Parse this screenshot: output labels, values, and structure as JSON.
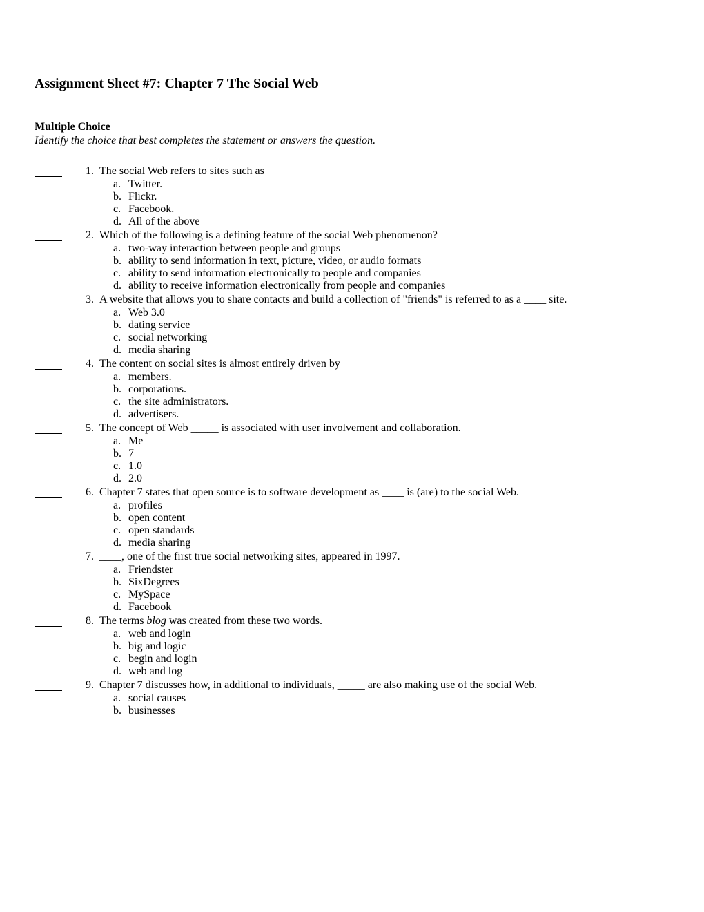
{
  "title": "Assignment Sheet #7: Chapter 7 The Social Web",
  "section_heading": "Multiple Choice",
  "instruction": "Identify the choice that best completes the statement or answers the question.",
  "questions": [
    {
      "num": "1.",
      "stem": "The social Web refers to sites such as",
      "options": [
        {
          "l": "a.",
          "t": "Twitter."
        },
        {
          "l": "b.",
          "t": "Flickr."
        },
        {
          "l": "c.",
          "t": "Facebook."
        },
        {
          "l": "d.",
          "t": "All of the above"
        }
      ]
    },
    {
      "num": "2.",
      "stem": "Which of the following is a defining feature of the social Web phenomenon?",
      "options": [
        {
          "l": "a.",
          "t": "two-way interaction between people and groups"
        },
        {
          "l": "b.",
          "t": "ability to send information in text, picture, video, or audio formats"
        },
        {
          "l": "c.",
          "t": "ability to send information electronically to people and companies"
        },
        {
          "l": "d.",
          "t": "ability to receive information electronically from people and companies"
        }
      ]
    },
    {
      "num": "3.",
      "stem": "A website that allows you to share contacts and build a collection of \"friends\" is referred to as a ____ site.",
      "options": [
        {
          "l": "a.",
          "t": "Web 3.0"
        },
        {
          "l": "b.",
          "t": "dating service"
        },
        {
          "l": "c.",
          "t": "social networking"
        },
        {
          "l": "d.",
          "t": "media sharing"
        }
      ]
    },
    {
      "num": "4.",
      "stem": "The content on social sites is almost entirely driven by",
      "options": [
        {
          "l": "a.",
          "t": "members."
        },
        {
          "l": "b.",
          "t": "corporations."
        },
        {
          "l": "c.",
          "t": "the site administrators."
        },
        {
          "l": "d.",
          "t": "advertisers."
        }
      ]
    },
    {
      "num": "5.",
      "stem": "The concept of Web _____ is associated with user involvement and collaboration.",
      "options": [
        {
          "l": "a.",
          "t": "Me"
        },
        {
          "l": "b.",
          "t": "7"
        },
        {
          "l": "c.",
          "t": "1.0"
        },
        {
          "l": "d.",
          "t": "2.0"
        }
      ]
    },
    {
      "num": "6.",
      "stem": "Chapter 7 states that open source is to software development as ____ is (are) to the social Web.",
      "options": [
        {
          "l": "a.",
          "t": "profiles"
        },
        {
          "l": "b.",
          "t": "open content"
        },
        {
          "l": "c.",
          "t": "open standards"
        },
        {
          "l": "d.",
          "t": "media sharing"
        }
      ]
    },
    {
      "num": "7.",
      "stem": "____, one of the first true social networking sites, appeared in 1997.",
      "options": [
        {
          "l": "a.",
          "t": "Friendster"
        },
        {
          "l": "b.",
          "t": "SixDegrees"
        },
        {
          "l": "c.",
          "t": "MySpace"
        },
        {
          "l": "d.",
          "t": "Facebook"
        }
      ]
    },
    {
      "num": "8.",
      "stem_html": "The terms <span class=\"italic\">blog</span> was created from these two words.",
      "options": [
        {
          "l": "a.",
          "t": "web and login"
        },
        {
          "l": "b.",
          "t": "big and logic"
        },
        {
          "l": "c.",
          "t": "begin and login"
        },
        {
          "l": "d.",
          "t": "web and log"
        }
      ]
    },
    {
      "num": "9.",
      "stem": "Chapter 7 discusses how, in additional to individuals, _____ are also making use of the social Web.",
      "options": [
        {
          "l": "a.",
          "t": "social causes"
        },
        {
          "l": "b.",
          "t": "businesses"
        }
      ]
    }
  ]
}
